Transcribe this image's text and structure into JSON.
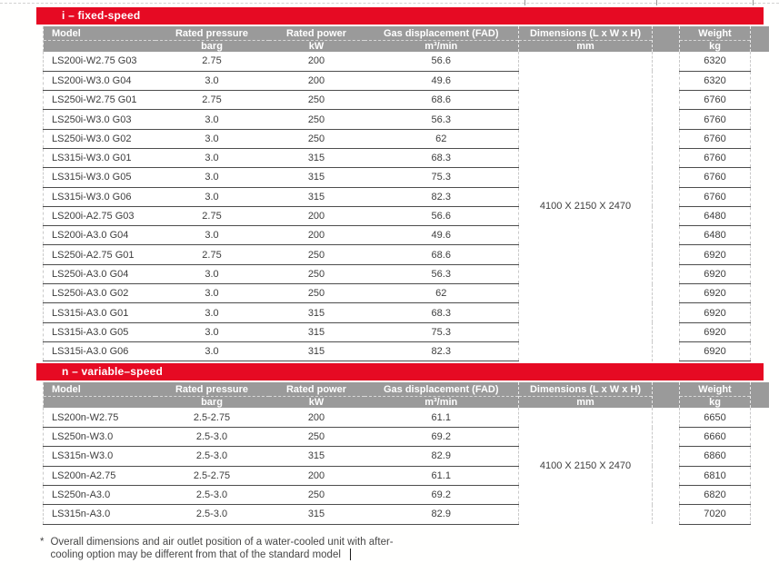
{
  "colors": {
    "accent_red": "#e60a23",
    "header_gray": "#9a9a9a",
    "text_gray": "#3d3d3d"
  },
  "columns": [
    {
      "label": "Model",
      "unit": ""
    },
    {
      "label": "Rated pressure",
      "unit": "barg"
    },
    {
      "label": "Rated power",
      "unit": "kW"
    },
    {
      "label": "Gas displacement (FAD)",
      "unit": "m³/min"
    },
    {
      "label": "Dimensions (L x W x H)",
      "unit": "mm"
    },
    {
      "label": "Weight",
      "unit": "kg"
    }
  ],
  "sections": [
    {
      "title": "i – fixed-speed",
      "dimensions": "4100 X 2150 X 2470",
      "rows": [
        {
          "model": "LS200i-W2.75 G03",
          "pressure": "2.75",
          "power": "200",
          "fad": "56.6",
          "weight": "6320"
        },
        {
          "model": "LS200i-W3.0 G04",
          "pressure": "3.0",
          "power": "200",
          "fad": "49.6",
          "weight": "6320"
        },
        {
          "model": "LS250i-W2.75 G01",
          "pressure": "2.75",
          "power": "250",
          "fad": "68.6",
          "weight": "6760"
        },
        {
          "model": "LS250i-W3.0 G03",
          "pressure": "3.0",
          "power": "250",
          "fad": "56.3",
          "weight": "6760"
        },
        {
          "model": "LS250i-W3.0 G02",
          "pressure": "3.0",
          "power": "250",
          "fad": "62",
          "weight": "6760"
        },
        {
          "model": "LS315i-W3.0 G01",
          "pressure": "3.0",
          "power": "315",
          "fad": "68.3",
          "weight": "6760"
        },
        {
          "model": "LS315i-W3.0 G05",
          "pressure": "3.0",
          "power": "315",
          "fad": "75.3",
          "weight": "6760"
        },
        {
          "model": "LS315i-W3.0 G06",
          "pressure": "3.0",
          "power": "315",
          "fad": "82.3",
          "weight": "6760"
        },
        {
          "model": "LS200i-A2.75 G03",
          "pressure": "2.75",
          "power": "200",
          "fad": "56.6",
          "weight": "6480"
        },
        {
          "model": "LS200i-A3.0 G04",
          "pressure": "3.0",
          "power": "200",
          "fad": "49.6",
          "weight": "6480"
        },
        {
          "model": "LS250i-A2.75 G01",
          "pressure": "2.75",
          "power": "250",
          "fad": "68.6",
          "weight": "6920"
        },
        {
          "model": "LS250i-A3.0 G04",
          "pressure": "3.0",
          "power": "250",
          "fad": "56.3",
          "weight": "6920"
        },
        {
          "model": "LS250i-A3.0 G02",
          "pressure": "3.0",
          "power": "250",
          "fad": "62",
          "weight": "6920"
        },
        {
          "model": "LS315i-A3.0 G01",
          "pressure": "3.0",
          "power": "315",
          "fad": "68.3",
          "weight": "6920"
        },
        {
          "model": "LS315i-A3.0 G05",
          "pressure": "3.0",
          "power": "315",
          "fad": "75.3",
          "weight": "6920"
        },
        {
          "model": "LS315i-A3.0 G06",
          "pressure": "3.0",
          "power": "315",
          "fad": "82.3",
          "weight": "6920"
        }
      ]
    },
    {
      "title": "n – variable–speed",
      "dimensions": "4100 X 2150 X 2470",
      "rows": [
        {
          "model": "LS200n-W2.75",
          "pressure": "2.5-2.75",
          "power": "200",
          "fad": "61.1",
          "weight": "6650"
        },
        {
          "model": "LS250n-W3.0",
          "pressure": "2.5-3.0",
          "power": "250",
          "fad": "69.2",
          "weight": "6660"
        },
        {
          "model": "LS315n-W3.0",
          "pressure": "2.5-3.0",
          "power": "315",
          "fad": "82.9",
          "weight": "6860"
        },
        {
          "model": "LS200n-A2.75",
          "pressure": "2.5-2.75",
          "power": "200",
          "fad": "61.1",
          "weight": "6810"
        },
        {
          "model": "LS250n-A3.0",
          "pressure": "2.5-3.0",
          "power": "250",
          "fad": "69.2",
          "weight": "6820"
        },
        {
          "model": "LS315n-A3.0",
          "pressure": "2.5-3.0",
          "power": "315",
          "fad": "82.9",
          "weight": "7020"
        }
      ]
    }
  ],
  "footnote": {
    "marker": "*",
    "line1": "Overall dimensions and air outlet position of a water-cooled unit with after-",
    "line2": "cooling option may be different from that of the standard model"
  }
}
